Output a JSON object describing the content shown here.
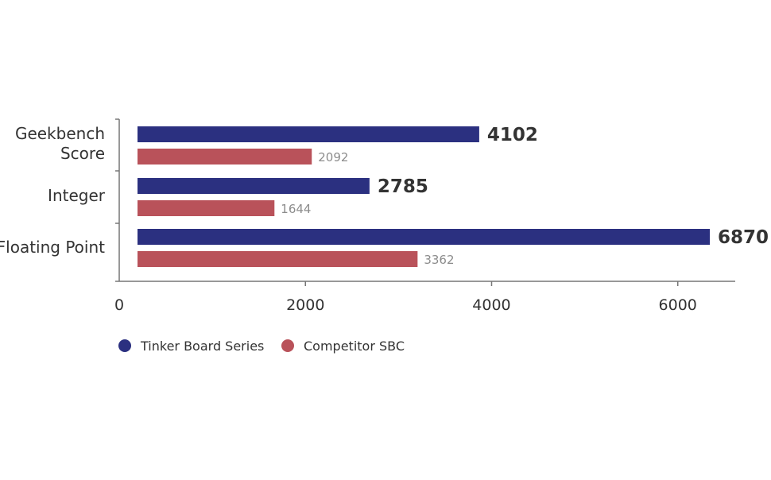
{
  "chart_data": {
    "type": "bar",
    "orientation": "horizontal",
    "categories": [
      "Geekbench\nScore",
      "Integer",
      "Floating Point"
    ],
    "series": [
      {
        "name": "Tinker Board Series",
        "color": "#2b3080",
        "values": [
          4102,
          2785,
          6870
        ]
      },
      {
        "name": "Competitor SBC",
        "color": "#b9525a",
        "values": [
          2092,
          1644,
          3362
        ]
      }
    ],
    "xlim": [
      0,
      6600
    ],
    "xticks": [
      "0",
      "2000",
      "4000",
      "6000"
    ],
    "legend_position": "bottom-left",
    "grid": false
  }
}
